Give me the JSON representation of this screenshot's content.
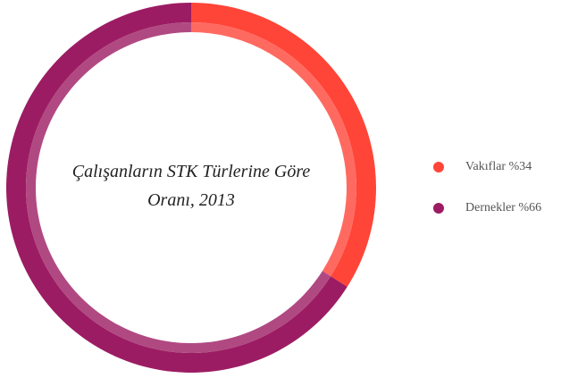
{
  "chart_data": {
    "type": "pie",
    "donut": true,
    "title": "Çalışanların STK Türlerine Göre Oranı, 2013",
    "categories": [
      "Vakıflar",
      "Dernekler"
    ],
    "values": [
      34,
      66
    ],
    "value_labels": [
      "%34",
      "%66"
    ],
    "colors": [
      "#ff4538",
      "#9c1c63"
    ],
    "legend": "right"
  }
}
